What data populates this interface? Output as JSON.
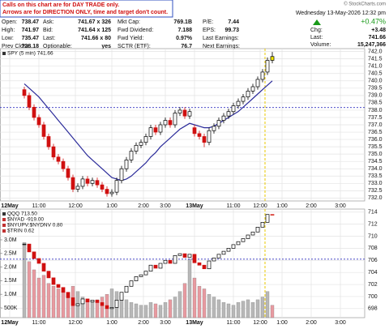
{
  "header": {
    "notice": [
      "Calls on this chart are for DAY TRADE only.",
      "Arrows are for DIRECTION ONLY, time and target don't count."
    ],
    "quote": [
      [
        "Open:",
        "738.47",
        "Ask:",
        "741.67 x 326",
        "Mkt Cap:",
        "769.1B",
        "P/E:",
        "7.44"
      ],
      [
        "High:",
        "741.97",
        "Bid:",
        "741.64 x 125",
        "Fwd Dividend:",
        "7.188",
        "EPS:",
        "99.73"
      ],
      [
        "Low:",
        "735.47",
        "Last:",
        "741.66 x 80",
        "Fwd Yield:",
        "0.97%",
        "Last Earnings:",
        ""
      ],
      [
        "Prev Close:",
        "738.18",
        "Optionable:",
        "yes",
        "SCTR (ETF):",
        "76.7",
        "Next Earnings:",
        ""
      ]
    ],
    "date": "Wednesday 13-May-2026 12:32 pm",
    "pct": "+0.47%",
    "up_color": "#1a9a1a",
    "right": [
      [
        "Chg:",
        "+3.48"
      ],
      [
        "Last:",
        "741.66"
      ],
      [
        "Volume:",
        "15,247,366"
      ]
    ],
    "watermark": "© StockCharts.com"
  },
  "chart_data": [
    {
      "type": "candlestick",
      "legend": [
        "SPY (5 min) 741.66"
      ],
      "x": [
        5,
        6,
        7,
        8,
        9,
        10,
        11,
        12,
        13,
        14,
        15,
        16,
        17,
        18,
        19,
        20,
        21,
        22,
        23,
        24,
        25,
        26,
        27,
        28,
        29,
        30,
        31,
        32,
        33,
        34,
        35,
        36,
        37,
        38,
        39,
        40,
        41,
        42,
        43,
        44,
        45,
        46,
        47,
        48,
        49,
        50,
        51,
        52,
        53,
        54,
        55,
        56
      ],
      "open": [
        739.4,
        739.0,
        738.2,
        737.5,
        737.0,
        736.2,
        735.5,
        734.8,
        734.5,
        734.0,
        733.4,
        732.6,
        732.8,
        733.3,
        733.0,
        733.2,
        732.9,
        732.6,
        732.3,
        732.4,
        733.2,
        734.0,
        734.6,
        735.2,
        735.6,
        735.8,
        736.2,
        736.8,
        736.5,
        737.0,
        737.3,
        737.0,
        737.8,
        738.0,
        737.6,
        736.8,
        736.4,
        736.2,
        735.8,
        736.6,
        736.9,
        737.3,
        737.6,
        737.9,
        738.3,
        738.6,
        738.9,
        739.3,
        739.6,
        740.1,
        740.6,
        741.4
      ],
      "high": [
        739.6,
        739.2,
        738.4,
        737.7,
        737.2,
        736.4,
        735.7,
        735.0,
        734.7,
        734.2,
        733.6,
        733.0,
        733.5,
        733.5,
        733.4,
        733.4,
        733.1,
        732.8,
        732.6,
        733.4,
        734.2,
        734.8,
        735.4,
        735.8,
        736.0,
        736.4,
        737.0,
        737.0,
        737.2,
        737.5,
        737.5,
        738.0,
        738.2,
        738.2,
        738.1,
        737.0,
        736.6,
        736.4,
        736.8,
        737.1,
        737.5,
        737.8,
        738.1,
        738.5,
        738.8,
        739.1,
        739.5,
        739.8,
        740.3,
        740.8,
        741.6,
        741.97
      ],
      "low": [
        738.8,
        738.0,
        737.3,
        736.8,
        736.0,
        735.3,
        734.6,
        734.3,
        733.8,
        733.2,
        732.4,
        732.4,
        732.6,
        732.8,
        732.8,
        732.7,
        732.4,
        732.1,
        732.1,
        732.2,
        733.0,
        733.8,
        734.4,
        735.0,
        735.4,
        735.6,
        736.0,
        736.3,
        736.3,
        736.8,
        736.8,
        736.8,
        737.6,
        737.4,
        737.4,
        736.2,
        736.0,
        735.47,
        735.6,
        736.4,
        736.7,
        737.1,
        737.4,
        737.7,
        738.1,
        738.4,
        738.7,
        739.1,
        739.4,
        739.9,
        740.4,
        741.2
      ],
      "close": [
        739.0,
        738.2,
        737.5,
        737.0,
        736.2,
        735.5,
        734.8,
        734.5,
        734.0,
        733.4,
        732.6,
        732.8,
        733.3,
        733.0,
        733.2,
        732.9,
        732.6,
        732.3,
        732.4,
        733.2,
        734.0,
        734.6,
        735.2,
        735.6,
        735.8,
        736.2,
        736.8,
        736.5,
        737.0,
        737.3,
        737.0,
        737.8,
        738.0,
        737.6,
        737.9,
        736.4,
        736.2,
        735.8,
        736.6,
        736.9,
        737.3,
        737.6,
        737.9,
        738.3,
        738.6,
        738.9,
        739.3,
        739.6,
        740.1,
        740.6,
        741.4,
        741.66
      ],
      "ma": [
        739.8,
        739.5,
        739.2,
        738.9,
        738.5,
        738.1,
        737.7,
        737.3,
        736.9,
        736.5,
        736.1,
        735.7,
        735.3,
        734.9,
        734.6,
        734.3,
        734.0,
        733.7,
        733.4,
        733.3,
        733.2,
        733.3,
        733.5,
        733.8,
        734.1,
        734.4,
        734.8,
        735.1,
        735.5,
        735.8,
        736.1,
        736.4,
        736.7,
        736.9,
        737.1,
        737.0,
        736.9,
        736.8,
        736.8,
        736.9,
        737.1,
        737.3,
        737.5,
        737.7,
        737.9,
        738.2,
        738.5,
        738.8,
        739.1,
        739.4,
        739.7,
        740.0
      ],
      "up_color": "#000000",
      "down_color": "#d01010",
      "ma_color": "#2b2b9a",
      "last_color": "#f2e600",
      "reference_line": 738.18,
      "ref_color": "#3030c0",
      "marker_x": 54.5,
      "marker_color": "#e8c800",
      "xlim": [
        0,
        75
      ],
      "ylim": [
        731.8,
        742.2
      ],
      "xticks": [
        {
          "value": 2,
          "label": "12May"
        },
        {
          "value": 8,
          "label": "11:00"
        },
        {
          "value": 15.5,
          "label": "12:00"
        },
        {
          "value": 23,
          "label": "1:00"
        },
        {
          "value": 29.5,
          "label": "2:00"
        },
        {
          "value": 34,
          "label": "3:00"
        },
        {
          "value": 40,
          "label": "13May"
        },
        {
          "value": 48,
          "label": "11:00"
        },
        {
          "value": 53.5,
          "label": "12:00"
        },
        {
          "value": 58,
          "label": "1:00"
        },
        {
          "value": 64,
          "label": "2:00"
        },
        {
          "value": 70,
          "label": "3:00"
        }
      ],
      "yticks": [
        {
          "value": 732,
          "label": "732.0"
        },
        732.5,
        {
          "value": 733,
          "label": "733.0"
        },
        733.5,
        {
          "value": 734,
          "label": "734.0"
        },
        734.5,
        {
          "value": 735,
          "label": "735.0"
        },
        735.5,
        {
          "value": 736,
          "label": "736.0"
        },
        736.5,
        {
          "value": 737,
          "label": "737.0"
        },
        737.5,
        {
          "value": 738,
          "label": "738.0"
        },
        738.5,
        {
          "value": 739,
          "label": "739.0"
        },
        739.5,
        {
          "value": 740,
          "label": "740.0"
        },
        740.5,
        {
          "value": 741,
          "label": "741.0"
        },
        741.5,
        {
          "value": 742,
          "label": "742.0"
        }
      ],
      "grid": true
    },
    {
      "type": "candlestick",
      "legend": [
        "QQQ 713.50",
        "$NYAD -919.00",
        "$NYUPV:$NYDNV 0.80",
        "$TRIN 0.62"
      ],
      "x": [
        5,
        6,
        7,
        8,
        9,
        10,
        11,
        12,
        13,
        14,
        15,
        16,
        17,
        18,
        19,
        20,
        21,
        22,
        23,
        24,
        25,
        26,
        27,
        28,
        29,
        30,
        31,
        32,
        33,
        34,
        35,
        36,
        37,
        38,
        39,
        40,
        41,
        42,
        43,
        44,
        45,
        46,
        47,
        48,
        49,
        50,
        51,
        52,
        53,
        54,
        55,
        56
      ],
      "close": [
        708.7,
        707.4,
        706.3,
        705.5,
        704.2,
        703.1,
        702.0,
        701.5,
        700.7,
        699.8,
        698.5,
        698.8,
        699.6,
        699.1,
        699.4,
        699.0,
        698.5,
        698.0,
        698.2,
        699.4,
        700.7,
        701.7,
        702.6,
        703.3,
        703.6,
        704.2,
        705.2,
        704.7,
        705.5,
        706.0,
        705.5,
        706.8,
        707.1,
        706.5,
        707.0,
        705.6,
        705.2,
        704.6,
        705.9,
        706.4,
        707.0,
        707.5,
        708.0,
        708.6,
        709.1,
        709.6,
        710.2,
        710.7,
        711.5,
        712.3,
        713.6,
        713.5
      ],
      "volume": [
        2900000,
        2200000,
        1900000,
        1600000,
        1700000,
        1400000,
        1300000,
        1200000,
        1100000,
        1000000,
        1300000,
        1100000,
        900000,
        800000,
        700000,
        800000,
        900000,
        1000000,
        1200000,
        1100000,
        900000,
        800000,
        700000,
        650000,
        600000,
        600000,
        700000,
        650000,
        600000,
        700000,
        800000,
        900000,
        1100000,
        1400000,
        2300000,
        1600000,
        1300000,
        1200000,
        1000000,
        900000,
        800000,
        700000,
        650000,
        600000,
        700000,
        750000,
        800000,
        700000,
        800000,
        900000,
        1100000,
        600000
      ],
      "up_color": "#000000",
      "down_color": "#d01010",
      "last_color": "#f2e600",
      "volume_color": "#b8b8b8",
      "volume_down_color": "#e89aa0",
      "reference_line": 706.2,
      "ref_color": "#3030c0",
      "marker_x": 54.5,
      "marker_color": "#e8c800",
      "xlim": [
        0,
        75
      ],
      "ylim": [
        696.5,
        714.5
      ],
      "vlim": [
        143000,
        4130000
      ],
      "xticks": [
        {
          "value": 2,
          "label": "12May"
        },
        {
          "value": 8,
          "label": "11:00"
        },
        {
          "value": 15.5,
          "label": "12:00"
        },
        {
          "value": 23,
          "label": "1:00"
        },
        {
          "value": 29.5,
          "label": "2:00"
        },
        {
          "value": 34,
          "label": "3:00"
        },
        {
          "value": 40,
          "label": "13May"
        },
        {
          "value": 48,
          "label": "11:00"
        },
        {
          "value": 53.5,
          "label": "12:00"
        },
        {
          "value": 58,
          "label": "1:00"
        },
        {
          "value": 64,
          "label": "2:00"
        },
        {
          "value": 70,
          "label": "3:00"
        }
      ],
      "yticks": [
        698,
        700,
        702,
        704,
        706,
        708,
        710,
        712,
        714
      ],
      "vticks": [
        {
          "value": 500000,
          "label": "500K"
        },
        {
          "value": 1000000,
          "label": "1.0M"
        },
        {
          "value": 1500000,
          "label": "1.5M"
        },
        {
          "value": 2000000,
          "label": "2.0M"
        },
        {
          "value": 2500000,
          "label": "2.5M"
        },
        {
          "value": 3000000,
          "label": "3.0M"
        }
      ],
      "grid": true
    }
  ]
}
